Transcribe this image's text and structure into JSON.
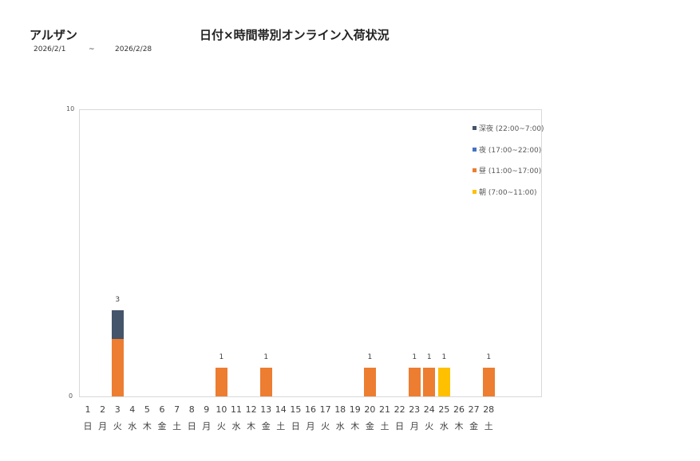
{
  "header": {
    "store_name": "アルザン",
    "title": "日付×時間帯別オンライン入荷状況",
    "date_from": "2026/2/1",
    "date_sep": "~",
    "date_to": "2026/2/28"
  },
  "colors": {
    "late_night": "#44546A",
    "night": "#4472C4",
    "day": "#ED7D31",
    "morning": "#FFC000"
  },
  "chart_data": {
    "type": "bar",
    "stacked": true,
    "title": "日付×時間帯別オンライン入荷状況",
    "xlabel": "",
    "ylabel": "",
    "ylim": [
      0,
      10
    ],
    "yticks": [
      "0",
      "10"
    ],
    "grid": false,
    "legend_position": "right-top",
    "categories": [
      "1",
      "2",
      "3",
      "4",
      "5",
      "6",
      "7",
      "8",
      "9",
      "10",
      "11",
      "12",
      "13",
      "14",
      "15",
      "16",
      "17",
      "18",
      "19",
      "20",
      "21",
      "22",
      "23",
      "24",
      "25",
      "26",
      "27",
      "28"
    ],
    "weekdays": [
      "日",
      "月",
      "火",
      "水",
      "木",
      "金",
      "土",
      "日",
      "月",
      "火",
      "水",
      "木",
      "金",
      "土",
      "日",
      "月",
      "火",
      "水",
      "木",
      "金",
      "土",
      "日",
      "月",
      "火",
      "水",
      "木",
      "金",
      "土"
    ],
    "series": [
      {
        "name": "朝 (7:00~11:00)",
        "key": "morning",
        "values": [
          0,
          0,
          0,
          0,
          0,
          0,
          0,
          0,
          0,
          0,
          0,
          0,
          0,
          0,
          0,
          0,
          0,
          0,
          0,
          0,
          0,
          0,
          0,
          0,
          1,
          0,
          0,
          0
        ]
      },
      {
        "name": "昼 (11:00~17:00)",
        "key": "day",
        "values": [
          0,
          0,
          2,
          0,
          0,
          0,
          0,
          0,
          0,
          1,
          0,
          0,
          1,
          0,
          0,
          0,
          0,
          0,
          0,
          1,
          0,
          0,
          1,
          1,
          0,
          0,
          0,
          1
        ]
      },
      {
        "name": "夜 (17:00~22:00)",
        "key": "night",
        "values": [
          0,
          0,
          0,
          0,
          0,
          0,
          0,
          0,
          0,
          0,
          0,
          0,
          0,
          0,
          0,
          0,
          0,
          0,
          0,
          0,
          0,
          0,
          0,
          0,
          0,
          0,
          0,
          0
        ]
      },
      {
        "name": "深夜 (22:00~7:00)",
        "key": "late_night",
        "values": [
          0,
          0,
          1,
          0,
          0,
          0,
          0,
          0,
          0,
          0,
          0,
          0,
          0,
          0,
          0,
          0,
          0,
          0,
          0,
          0,
          0,
          0,
          0,
          0,
          0,
          0,
          0,
          0
        ]
      }
    ],
    "totals": [
      0,
      0,
      3,
      0,
      0,
      0,
      0,
      0,
      0,
      1,
      0,
      0,
      1,
      0,
      0,
      0,
      0,
      0,
      0,
      1,
      0,
      0,
      1,
      1,
      1,
      0,
      0,
      1
    ],
    "legend": [
      "深夜 (22:00~7:00)",
      "夜 (17:00~22:00)",
      "昼 (11:00~17:00)",
      "朝 (7:00~11:00)"
    ]
  }
}
